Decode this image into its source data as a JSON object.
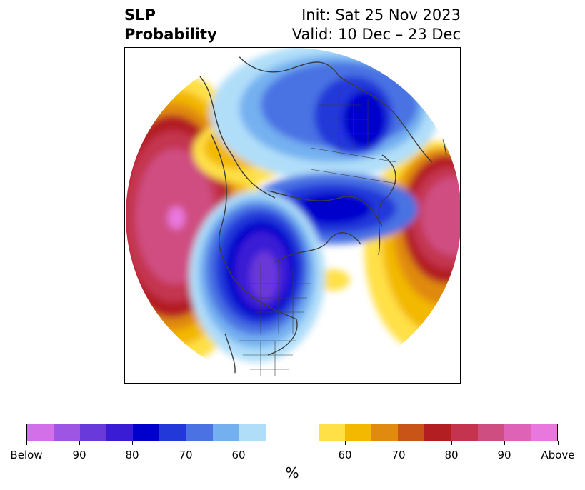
{
  "title": {
    "left_line1": "SLP",
    "left_line2": "Probability",
    "right_line1": "Init: Sat 25 Nov 2023",
    "right_line2": "Valid: 10 Dec – 23 Dec"
  },
  "colorbar": {
    "colors": [
      "#d36fe8",
      "#9e55e3",
      "#6a39d9",
      "#3a1cd5",
      "#0000cc",
      "#2238d9",
      "#4a72e3",
      "#74b0f0",
      "#b0def9",
      "#ffffff",
      "#ffffff",
      "#ffe046",
      "#f3b800",
      "#e08a10",
      "#c85418",
      "#b31e23",
      "#c4344f",
      "#cf4e81",
      "#de62b5",
      "#e978de"
    ],
    "tick_labels": [
      "Below",
      "90",
      "80",
      "70",
      "60",
      "60",
      "70",
      "80",
      "90",
      "Above"
    ],
    "unit_label": "%"
  }
}
